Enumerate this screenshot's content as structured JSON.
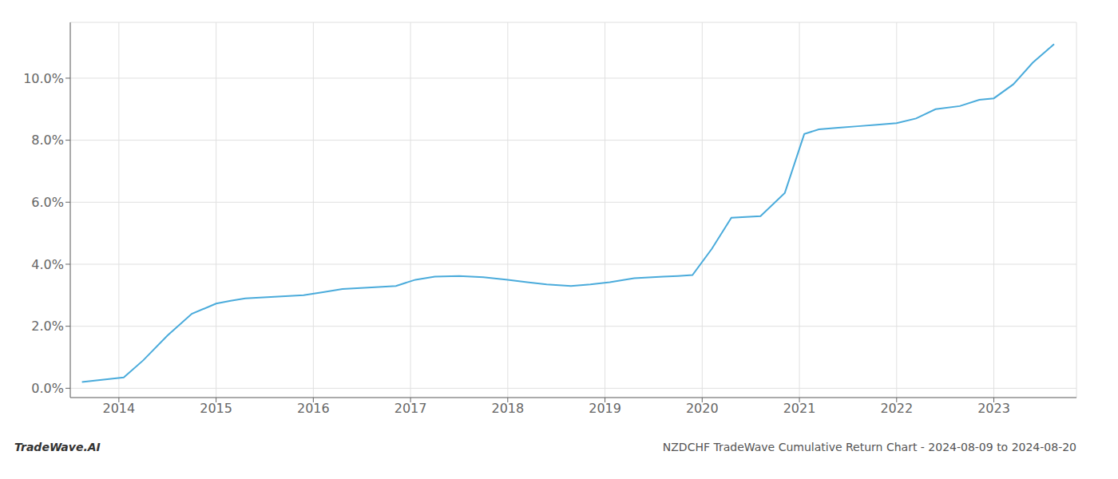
{
  "chart_data": {
    "type": "line",
    "title": "NZDCHF TradeWave Cumulative Return Chart - 2024-08-09 to 2024-08-20",
    "annotations": [
      "TradeWave.AI"
    ],
    "color": "#4aabdb",
    "x": [
      2013.62,
      2013.75,
      2014.05,
      2014.25,
      2014.5,
      2014.75,
      2015.0,
      2015.15,
      2015.3,
      2015.6,
      2015.9,
      2016.1,
      2016.3,
      2016.6,
      2016.85,
      2017.05,
      2017.25,
      2017.5,
      2017.75,
      2018.0,
      2018.2,
      2018.4,
      2018.65,
      2018.85,
      2019.05,
      2019.3,
      2019.6,
      2019.75,
      2019.9,
      2020.1,
      2020.3,
      2020.6,
      2020.85,
      2021.05,
      2021.2,
      2021.4,
      2021.6,
      2021.8,
      2022.0,
      2022.2,
      2022.4,
      2022.65,
      2022.85,
      2023.0,
      2023.2,
      2023.4,
      2023.62
    ],
    "values": [
      0.2,
      0.25,
      0.35,
      0.9,
      1.7,
      2.4,
      2.73,
      2.82,
      2.9,
      2.95,
      3.0,
      3.1,
      3.2,
      3.25,
      3.3,
      3.5,
      3.6,
      3.62,
      3.58,
      3.5,
      3.42,
      3.35,
      3.3,
      3.35,
      3.42,
      3.55,
      3.6,
      3.62,
      3.65,
      4.5,
      5.5,
      5.55,
      6.3,
      8.2,
      8.35,
      8.4,
      8.45,
      8.5,
      8.55,
      8.7,
      9.0,
      9.1,
      9.3,
      9.35,
      9.8,
      10.5,
      11.1
    ],
    "xlim": [
      2013.5,
      2023.85
    ],
    "ylim": [
      -0.3,
      11.8
    ],
    "xticks": [
      2014,
      2015,
      2016,
      2017,
      2018,
      2019,
      2020,
      2021,
      2022,
      2023
    ],
    "yticks": [
      {
        "value": 0.0,
        "label": "0.0%"
      },
      {
        "value": 2.0,
        "label": "2.0%"
      },
      {
        "value": 4.0,
        "label": "4.0%"
      },
      {
        "value": 6.0,
        "label": "6.0%"
      },
      {
        "value": 8.0,
        "label": "8.0%"
      },
      {
        "value": 10.0,
        "label": "10.0%"
      }
    ],
    "grid": true
  }
}
